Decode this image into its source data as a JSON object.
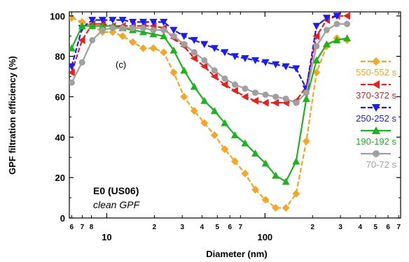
{
  "chart_data": {
    "type": "line",
    "xlabel": "Diameter (nm)",
    "ylabel": "GPF filtration efficiency (%)",
    "xscale": "log",
    "xlim": [
      5.8,
      720
    ],
    "ylim": [
      0,
      102
    ],
    "x_major_ticks": [
      {
        "value": 10,
        "label": "10"
      },
      {
        "value": 100,
        "label": "100"
      }
    ],
    "x_minor_ticks": [
      {
        "value": 6,
        "label": "6"
      },
      {
        "value": 7,
        "label": "7"
      },
      {
        "value": 8,
        "label": "8"
      },
      {
        "value": 20,
        "label": "2"
      },
      {
        "value": 30,
        "label": "3"
      },
      {
        "value": 40,
        "label": "4"
      },
      {
        "value": 50,
        "label": "5"
      },
      {
        "value": 60,
        "label": "6"
      },
      {
        "value": 70,
        "label": "7"
      },
      {
        "value": 200,
        "label": "2"
      },
      {
        "value": 300,
        "label": "3"
      },
      {
        "value": 400,
        "label": "4"
      },
      {
        "value": 500,
        "label": "5"
      },
      {
        "value": 600,
        "label": "6"
      },
      {
        "value": 700,
        "label": "7"
      }
    ],
    "y_ticks": [
      {
        "value": 0,
        "label": "0"
      },
      {
        "value": 20,
        "label": "20"
      },
      {
        "value": 40,
        "label": "40"
      },
      {
        "value": 60,
        "label": "60"
      },
      {
        "value": 80,
        "label": "80"
      },
      {
        "value": 100,
        "label": "100"
      }
    ],
    "legend_position": "right",
    "annotations": {
      "panel": "(c)",
      "title_line1": "E0 (US06)",
      "title_line2": "clean GPF"
    },
    "series": [
      {
        "name": "550-552 s",
        "color": "#f5a623",
        "marker": "diamond",
        "dash": true,
        "x": [
          6.0,
          6.98,
          8.1,
          9.4,
          10.9,
          12.6,
          14.6,
          17.0,
          19.7,
          22.9,
          26.5,
          30.8,
          35.7,
          41.4,
          48.0,
          55.7,
          64.6,
          74.9,
          86.9,
          100.8,
          116.9,
          135.6,
          157.4,
          182.5,
          211.7,
          245.6,
          284.9,
          330.5
        ],
        "y": [
          99,
          97,
          95,
          92,
          92,
          90,
          87,
          84,
          84,
          82,
          72,
          60,
          53,
          47,
          41,
          34,
          28,
          22,
          14,
          9,
          5,
          5,
          12,
          38,
          72,
          85,
          89,
          88
        ]
      },
      {
        "name": "370-372 s",
        "color": "#e8211d",
        "marker": "triangle-left",
        "dash": true,
        "x": [
          6.0,
          6.98,
          8.1,
          9.4,
          10.9,
          12.6,
          14.6,
          17.0,
          19.7,
          22.9,
          26.5,
          30.8,
          35.7,
          41.4,
          48.0,
          55.7,
          64.6,
          74.9,
          86.9,
          100.8,
          116.9,
          135.6,
          157.4,
          182.5,
          211.7,
          245.6,
          284.9,
          330.5
        ],
        "y": [
          72,
          88,
          96,
          96,
          95,
          95,
          95,
          95,
          95,
          94,
          89,
          85,
          79,
          75,
          70,
          66,
          63,
          60,
          58,
          57,
          57,
          57,
          58,
          65,
          90,
          98,
          100,
          100
        ]
      },
      {
        "name": "250-252 s",
        "color": "#1a1aff",
        "marker": "triangle-down",
        "dash": true,
        "x": [
          6.0,
          6.98,
          8.1,
          9.4,
          10.9,
          12.6,
          14.6,
          17.0,
          19.7,
          22.9,
          26.5,
          30.8,
          35.7,
          41.4,
          48.0,
          55.7,
          64.6,
          74.9,
          86.9,
          100.8,
          116.9,
          135.6,
          157.4,
          182.5,
          211.7,
          245.6,
          284.9
        ],
        "y": [
          75,
          94,
          98,
          98,
          98,
          98,
          97,
          97,
          97,
          97,
          93,
          90,
          88,
          86,
          84,
          82,
          80,
          79,
          78,
          77,
          76,
          75,
          74,
          64,
          95,
          99,
          100
        ]
      },
      {
        "name": "190-192 s",
        "color": "#1db31d",
        "marker": "triangle-up",
        "dash": false,
        "x": [
          6.0,
          6.98,
          8.1,
          9.4,
          10.9,
          12.6,
          14.6,
          17.0,
          19.7,
          22.9,
          26.5,
          30.8,
          35.7,
          41.4,
          48.0,
          55.7,
          64.6,
          74.9,
          86.9,
          100.8,
          116.9,
          135.6,
          157.4,
          182.5,
          211.7,
          245.6,
          284.9,
          330.5
        ],
        "y": [
          84,
          95,
          95,
          95,
          95,
          94,
          93,
          92,
          91,
          90,
          83,
          73,
          65,
          58,
          53,
          47,
          41,
          37,
          32,
          27,
          21,
          18,
          28,
          59,
          78,
          86,
          88,
          89
        ]
      },
      {
        "name": "70-72 s",
        "color": "#a0a0a0",
        "marker": "circle",
        "dash": false,
        "x": [
          6.0,
          6.98,
          8.1,
          9.4,
          10.9,
          12.6,
          14.6,
          17.0,
          19.7,
          22.9,
          26.5,
          30.8,
          35.7,
          41.4,
          48.0,
          55.7,
          64.6,
          74.9,
          86.9,
          100.8,
          116.9,
          135.6,
          157.4,
          182.5,
          211.7,
          245.6,
          284.9,
          330.5
        ],
        "y": [
          67,
          77,
          88,
          93,
          94,
          94,
          94,
          94,
          93,
          93,
          90,
          86,
          82,
          78,
          73,
          69,
          66,
          64,
          62,
          61,
          60,
          59,
          57,
          62,
          85,
          93,
          96,
          96
        ]
      }
    ]
  }
}
